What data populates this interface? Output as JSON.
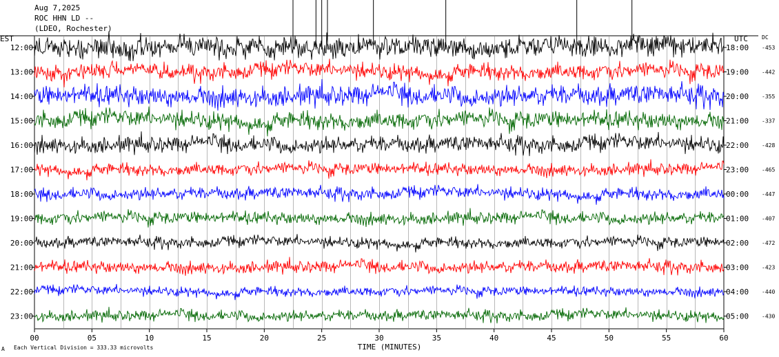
{
  "header": {
    "date": "Aug 7,2025",
    "station": "ROC HHN LD --",
    "network": "(LDEO, Rochester)"
  },
  "left_zone_label": "EST",
  "right_zone_label": "UTC",
  "dc_label": "DC",
  "xlabel": "TIME (MINUTES)",
  "footer_note": "Each Vertical Division =  333.33 microvolts",
  "footer_mark": "A",
  "chart_data": {
    "type": "line",
    "title": "",
    "xlabel": "TIME (MINUTES)",
    "xlim": [
      0,
      60
    ],
    "x_ticks": [
      "00",
      "05",
      "10",
      "15",
      "20",
      "25",
      "30",
      "35",
      "40",
      "45",
      "50",
      "55",
      "60"
    ],
    "grid": "vertical lines every minute",
    "trace_colors": [
      "#000000",
      "#ff0000",
      "#0000ff",
      "#006600"
    ],
    "rows": [
      {
        "est": "12:00",
        "utc": "18:00",
        "dc": "-453",
        "amp": 0.8
      },
      {
        "est": "13:00",
        "utc": "19:00",
        "dc": "-442",
        "amp": 0.6
      },
      {
        "est": "14:00",
        "utc": "20:00",
        "dc": "-355",
        "amp": 0.75
      },
      {
        "est": "15:00",
        "utc": "21:00",
        "dc": "-337",
        "amp": 0.65
      },
      {
        "est": "16:00",
        "utc": "22:00",
        "dc": "-428",
        "amp": 0.6
      },
      {
        "est": "17:00",
        "utc": "23:00",
        "dc": "-465",
        "amp": 0.45
      },
      {
        "est": "18:00",
        "utc": "00:00",
        "dc": "-447",
        "amp": 0.45
      },
      {
        "est": "19:00",
        "utc": "01:00",
        "dc": "-407",
        "amp": 0.45
      },
      {
        "est": "20:00",
        "utc": "02:00",
        "dc": "-472",
        "amp": 0.4
      },
      {
        "est": "21:00",
        "utc": "03:00",
        "dc": "-423",
        "amp": 0.45
      },
      {
        "est": "22:00",
        "utc": "04:00",
        "dc": "-440",
        "amp": 0.35
      },
      {
        "est": "23:00",
        "utc": "05:00",
        "dc": "-430",
        "amp": 0.4
      }
    ]
  }
}
